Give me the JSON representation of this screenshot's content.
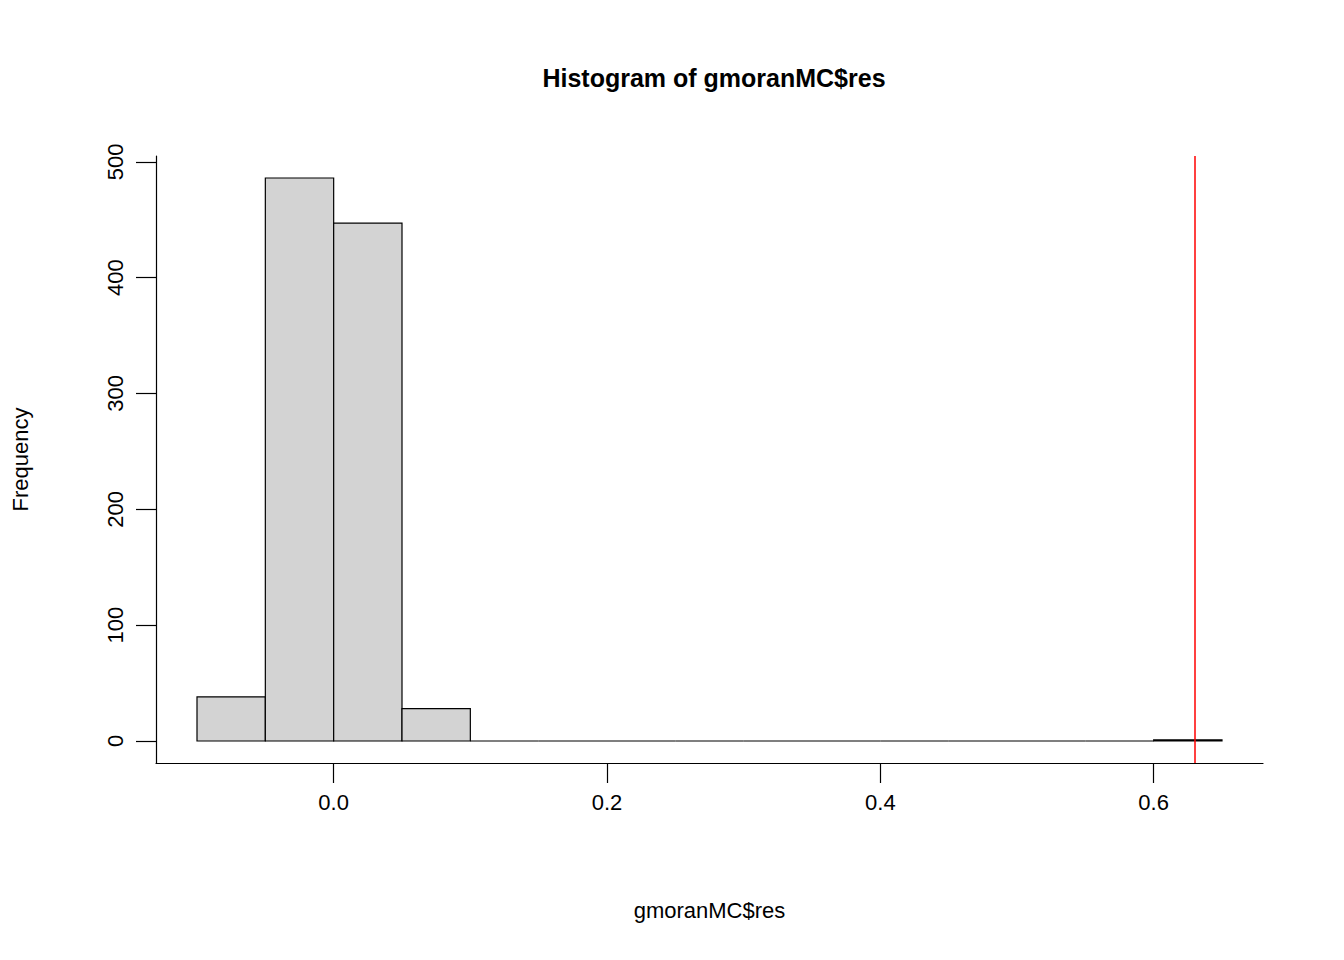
{
  "chart_data": {
    "type": "histogram",
    "title": "Histogram of gmoranMC$res",
    "x_label": "gmoranMC$res",
    "y_label": "Frequency",
    "bins": [
      -0.1,
      -0.05,
      0,
      0.05,
      0.1,
      0.15,
      0.2,
      0.25,
      0.3,
      0.35,
      0.4,
      0.45,
      0.5,
      0.55,
      0.6,
      0.65
    ],
    "counts": [
      38,
      486,
      447,
      28,
      0,
      0,
      0,
      0,
      0,
      0,
      0,
      0,
      0,
      0,
      1
    ],
    "color": "#d3d3d3",
    "xlim": [
      -0.13,
      0.68
    ],
    "ylim": [
      -19,
      505
    ],
    "xticks": [
      {
        "value": 0,
        "label": "0.0"
      },
      0.2,
      0.4,
      0.6
    ],
    "yticks": [
      0,
      100,
      200,
      300,
      400,
      500
    ],
    "reference_line": {
      "x": 0.627,
      "color": "#ff0000"
    }
  }
}
